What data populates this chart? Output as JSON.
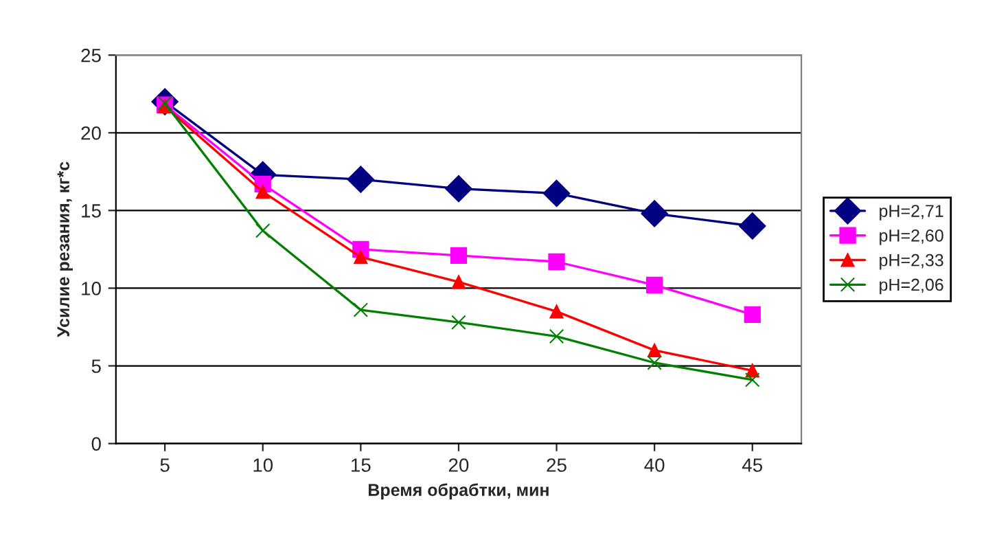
{
  "chart_data": {
    "type": "line",
    "xlabel": "Время обрабтки, мин",
    "ylabel": "Усилие резания, кг*с",
    "categories": [
      "5",
      "10",
      "15",
      "20",
      "25",
      "40",
      "45"
    ],
    "series": [
      {
        "name": "pH=2,71",
        "color": "#000080",
        "marker": "diamond",
        "values": [
          22.0,
          17.3,
          17.0,
          16.4,
          16.1,
          14.8,
          14.0
        ]
      },
      {
        "name": "pH=2,60",
        "color": "#ff00ff",
        "marker": "square",
        "values": [
          21.8,
          16.7,
          12.5,
          12.1,
          11.7,
          10.2,
          8.3
        ]
      },
      {
        "name": "pH=2,33",
        "color": "#ff0000",
        "marker": "triangle",
        "values": [
          21.7,
          16.2,
          12.0,
          10.4,
          8.5,
          6.0,
          4.7
        ]
      },
      {
        "name": "pH=2,06",
        "color": "#008000",
        "marker": "cross",
        "values": [
          21.9,
          13.7,
          8.6,
          7.8,
          6.9,
          5.2,
          4.1
        ]
      }
    ],
    "ylim": [
      0,
      25
    ],
    "yticks": [
      0,
      5,
      10,
      15,
      20,
      25
    ],
    "grid": "y",
    "legend": "right",
    "line_style": "solid"
  }
}
